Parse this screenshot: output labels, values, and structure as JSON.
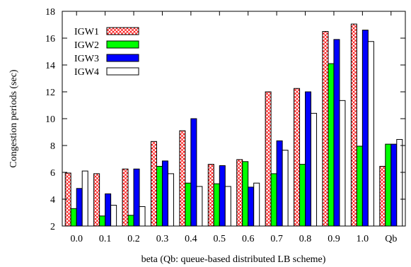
{
  "chart_data": {
    "type": "bar",
    "xlabel": "beta (Qb: queue-based distributed LB scheme)",
    "ylabel": "Congestion periods (sec)",
    "ylim": [
      2,
      18
    ],
    "yticks": [
      2,
      4,
      6,
      8,
      10,
      12,
      14,
      16,
      18
    ],
    "grid": false,
    "legend_position": "top-left",
    "categories": [
      "0.0",
      "0.1",
      "0.2",
      "0.3",
      "0.4",
      "0.5",
      "0.6",
      "0.7",
      "0.8",
      "0.9",
      "1.0",
      "Qb"
    ],
    "series": [
      {
        "name": "IGW1",
        "color": "#ff0000",
        "pattern": "crosshatch",
        "values": [
          5.95,
          5.9,
          6.25,
          8.3,
          9.1,
          6.6,
          6.95,
          12.0,
          12.25,
          16.5,
          17.05,
          6.45
        ]
      },
      {
        "name": "IGW2",
        "color": "#00ff00",
        "pattern": "solid",
        "values": [
          3.3,
          2.75,
          2.8,
          6.45,
          5.2,
          5.15,
          6.8,
          5.9,
          6.6,
          14.1,
          7.95,
          8.1
        ]
      },
      {
        "name": "IGW3",
        "color": "#0000ff",
        "pattern": "solid",
        "values": [
          4.8,
          4.4,
          6.25,
          6.85,
          10.0,
          6.5,
          4.9,
          8.35,
          12.0,
          15.9,
          16.6,
          8.1
        ]
      },
      {
        "name": "IGW4",
        "color": "#ffffff",
        "pattern": "solid",
        "values": [
          6.1,
          3.55,
          3.45,
          5.9,
          4.95,
          4.95,
          5.2,
          7.65,
          10.4,
          11.35,
          15.75,
          8.45
        ]
      }
    ]
  }
}
